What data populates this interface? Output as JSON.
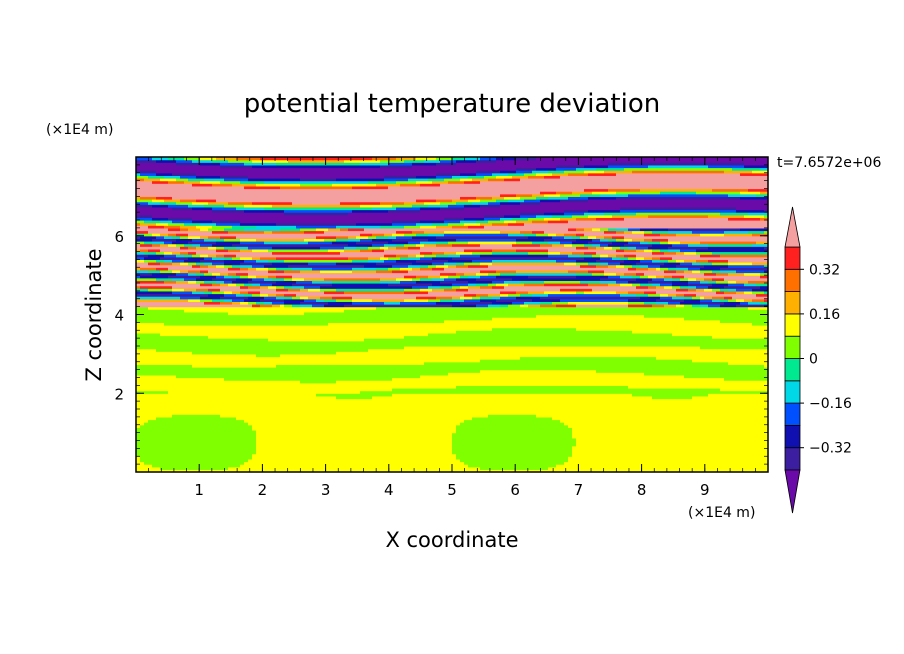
{
  "chart_data": {
    "type": "heatmap",
    "title": "potential temperature deviation",
    "time_label": "t=7.6572e+06",
    "xlabel": "X coordinate",
    "ylabel": "Z coordinate",
    "x_unit": "(×1E4 m)",
    "y_unit": "(×1E4 m)",
    "xlim": [
      0,
      10
    ],
    "ylim": [
      0,
      8
    ],
    "x_ticks": [
      1,
      2,
      3,
      4,
      5,
      6,
      7,
      8,
      9
    ],
    "y_ticks": [
      2,
      4,
      6
    ],
    "colorbar": {
      "levels": [
        -0.48,
        -0.4,
        -0.32,
        -0.24,
        -0.16,
        -0.08,
        0,
        0.08,
        0.16,
        0.24,
        0.32,
        0.4,
        0.48
      ],
      "tick_labels": [
        "0.32",
        "0.16",
        "0",
        "−0.16",
        "−0.32"
      ],
      "tick_values": [
        0.32,
        0.16,
        0,
        -0.16,
        -0.32
      ],
      "colors_low_to_high": [
        "#6a0aa8",
        "#3c1fa0",
        "#1010b0",
        "#0050ff",
        "#00d8e8",
        "#00e890",
        "#80ff00",
        "#ffff00",
        "#ffb000",
        "#ff7000",
        "#ff2020",
        "#f5a0a0"
      ],
      "extend": "both"
    },
    "bands": [
      {
        "z": [
          0.0,
          2.0
        ],
        "value": 0.02,
        "note": "lower layer, mixed green with cyan patches"
      },
      {
        "z": [
          2.0,
          4.2
        ],
        "value": 0.0,
        "note": "green/cyan layered band"
      },
      {
        "z": [
          4.2,
          6.2
        ],
        "value": 0.0,
        "note": "strongly layered, alternating positive and negative"
      },
      {
        "z": [
          6.2,
          8.0
        ],
        "value": 0.1,
        "note": "broad pink (high) and purple (low) layers"
      }
    ]
  }
}
